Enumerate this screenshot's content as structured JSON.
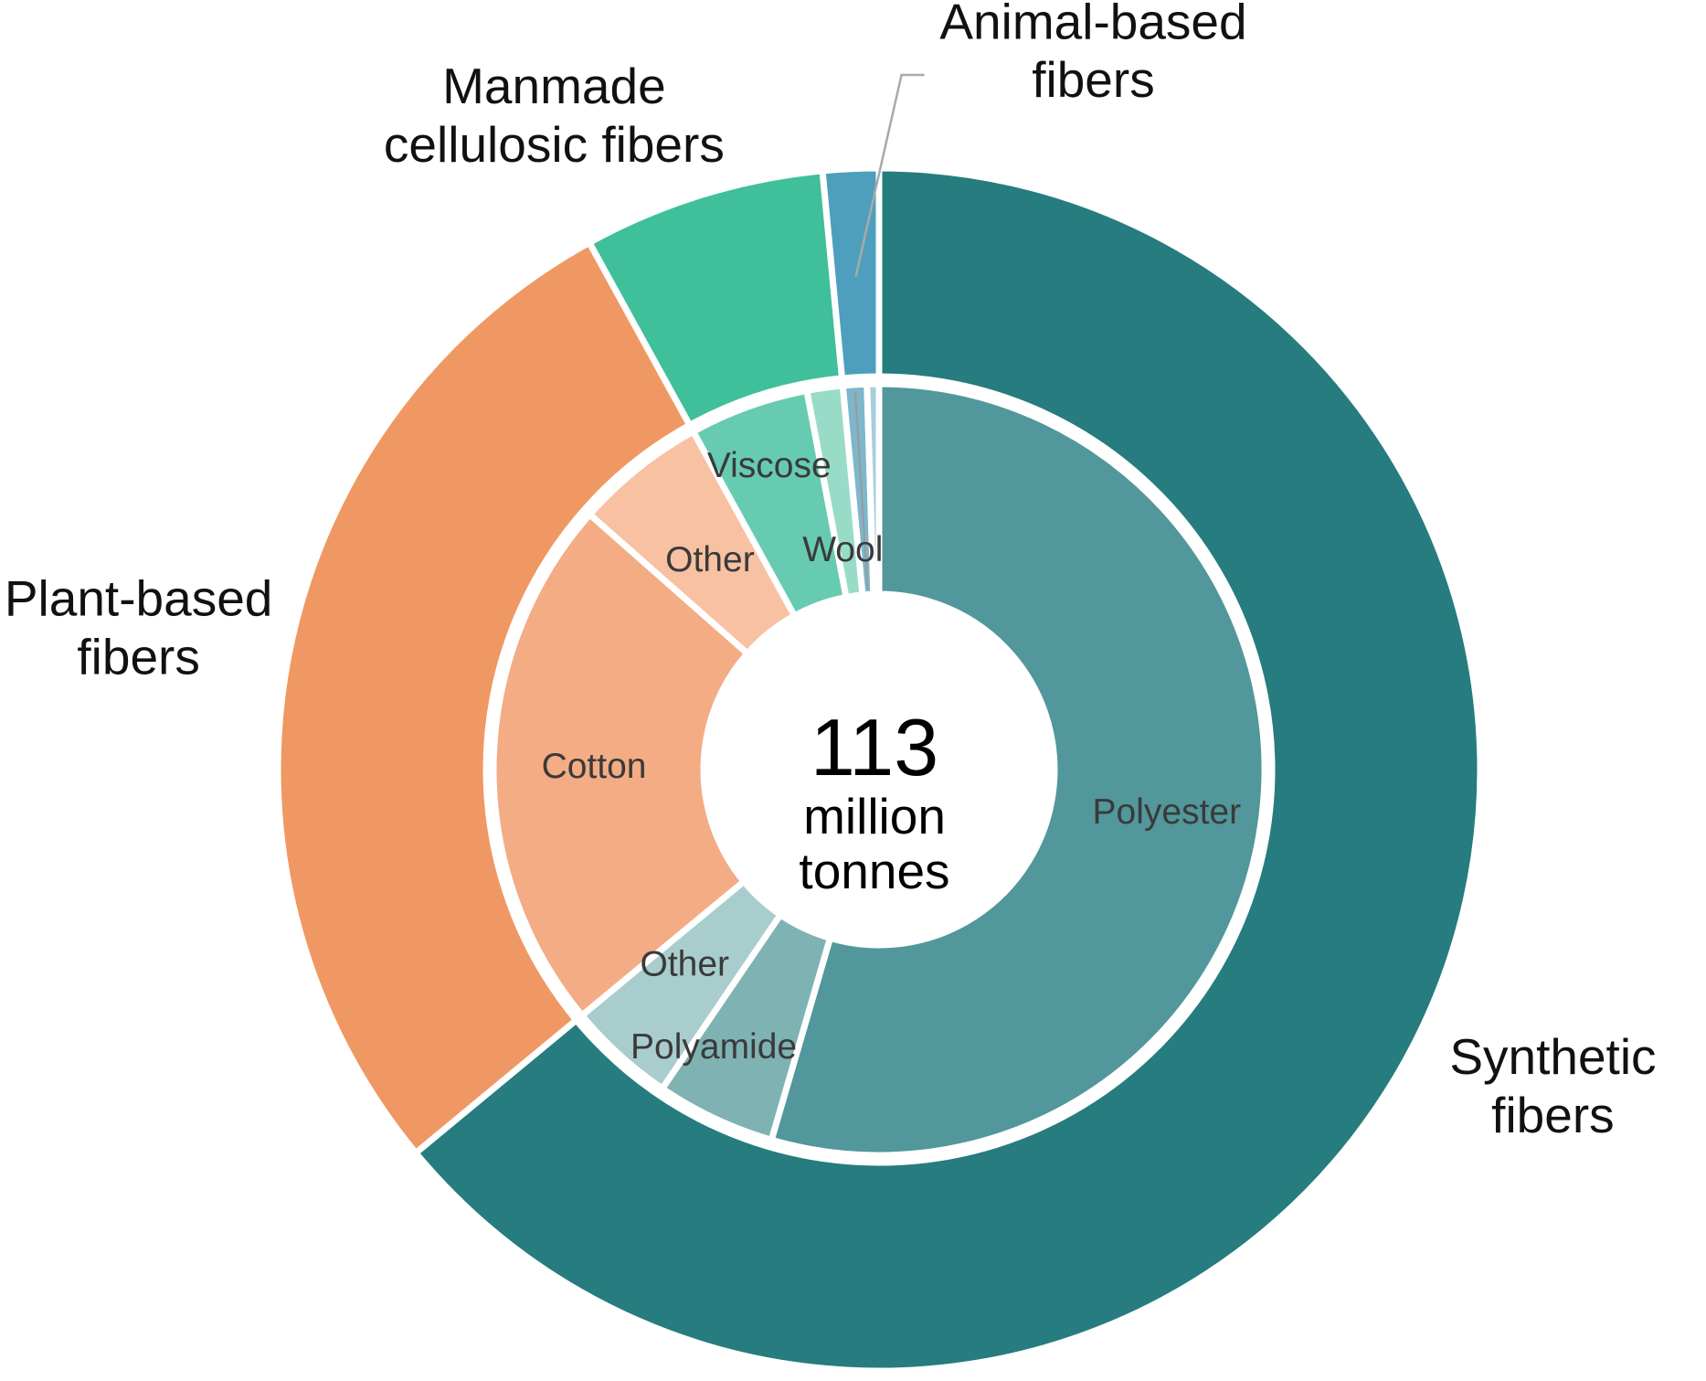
{
  "chart_data": {
    "type": "pie",
    "subtype": "nested-donut",
    "center": {
      "value": "113",
      "unit_line1": "million",
      "unit_line2": "tonnes"
    },
    "outer_ring": [
      {
        "name": "Synthetic fibers",
        "label_lines": [
          "Synthetic",
          "fibers"
        ],
        "value": 64.0,
        "color": "#267C7F"
      },
      {
        "name": "Plant-based fibers",
        "label_lines": [
          "Plant-based",
          "fibers"
        ],
        "value": 28.0,
        "color": "#F09863"
      },
      {
        "name": "Manmade cellulosic fibers",
        "label_lines": [
          "Manmade",
          "cellulosic fibers"
        ],
        "value": 6.5,
        "color": "#3FBF9A"
      },
      {
        "name": "Animal-based fibers",
        "label_lines": [
          "Animal-based",
          "fibers"
        ],
        "value": 1.5,
        "color": "#4E9FBE"
      }
    ],
    "inner_ring": [
      {
        "name": "Polyester",
        "label": "Polyester",
        "value": 54.5,
        "color": "#52979B"
      },
      {
        "name": "Polyamide",
        "label": "Polyamide",
        "value": 5.0,
        "color": "#7FB2B3"
      },
      {
        "name": "Other synthetic",
        "label": "Other",
        "value": 4.5,
        "color": "#A9CCCD"
      },
      {
        "name": "Cotton",
        "label": "Cotton",
        "value": 22.5,
        "color": "#F3AC84"
      },
      {
        "name": "Other plant-based",
        "label": "Other",
        "value": 5.5,
        "color": "#F7C1A2"
      },
      {
        "name": "Viscose",
        "label": "Viscose",
        "value": 5.0,
        "color": "#66CBB1"
      },
      {
        "name": "Other cellulosic",
        "label": "",
        "value": 1.5,
        "color": "#98DCC7"
      },
      {
        "name": "Wool",
        "label": "Wool",
        "value": 1.0,
        "color": "#7EB6CC"
      },
      {
        "name": "Other animal-based",
        "label": "",
        "value": 0.5,
        "color": "#A8CEDD"
      }
    ]
  }
}
